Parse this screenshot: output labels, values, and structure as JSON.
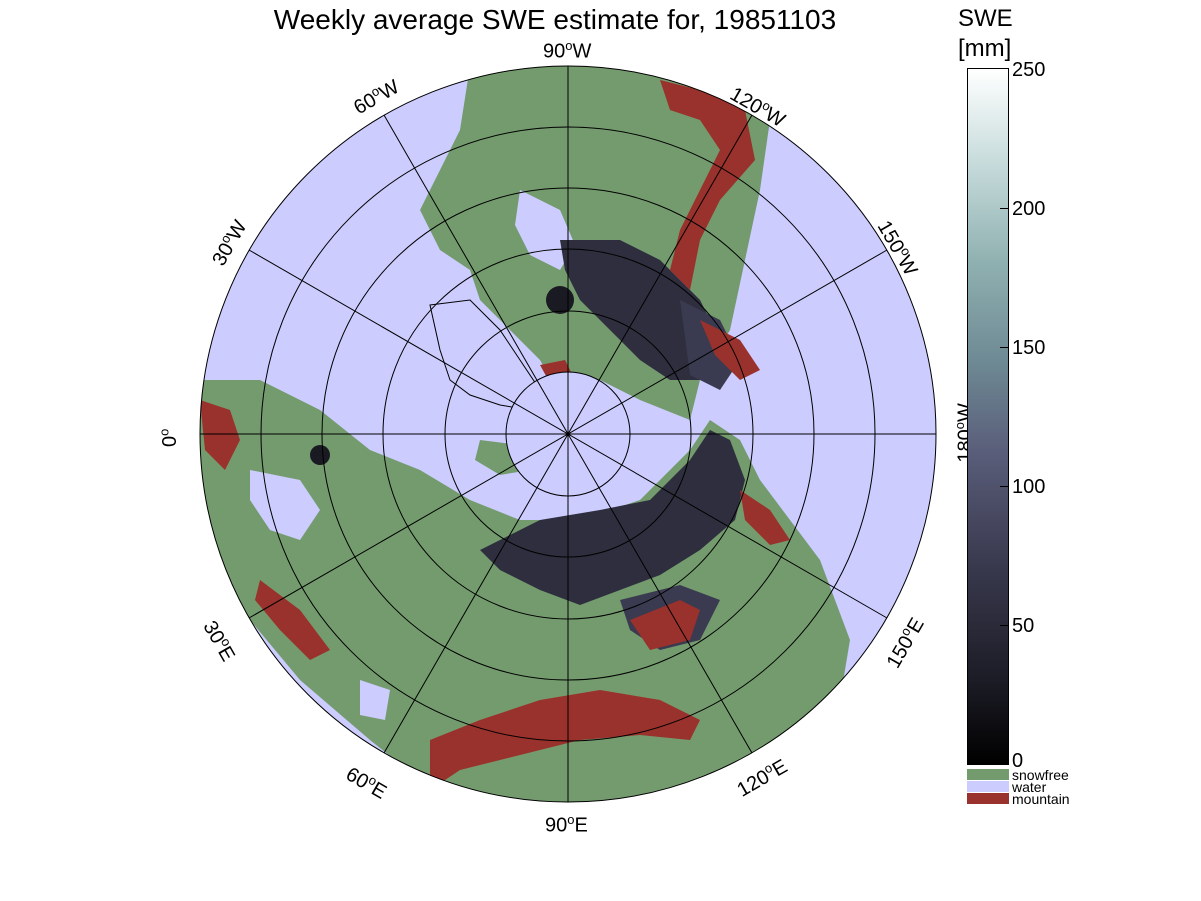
{
  "title": "Weekly average SWE estimate for, 19851103",
  "map": {
    "lon_labels": {
      "w90": "90",
      "w60": "60",
      "w120": "120",
      "w30": "30",
      "w150": "150",
      "zero": "0",
      "w180": "180",
      "e30": "30",
      "e150": "150",
      "e60": "60",
      "e120": "120",
      "e90": "90"
    },
    "hemi": {
      "W": "W",
      "E": "E"
    },
    "colors": {
      "water": "#ccccff",
      "snowfree": "#749b6e",
      "mountain": "#99312c",
      "snow_dark": "#2b2b3a",
      "snow_mid": "#4a4a62"
    }
  },
  "colorbar": {
    "title_line1": "SWE",
    "title_line2": "[mm]",
    "ticks": [
      "250",
      "200",
      "150",
      "100",
      "50",
      "0"
    ],
    "range": [
      0,
      250
    ]
  },
  "legend": {
    "items": [
      {
        "label": "snowfree",
        "color": "#749b6e"
      },
      {
        "label": "water",
        "color": "#ccccff"
      },
      {
        "label": "mountain",
        "color": "#99312c"
      }
    ]
  }
}
